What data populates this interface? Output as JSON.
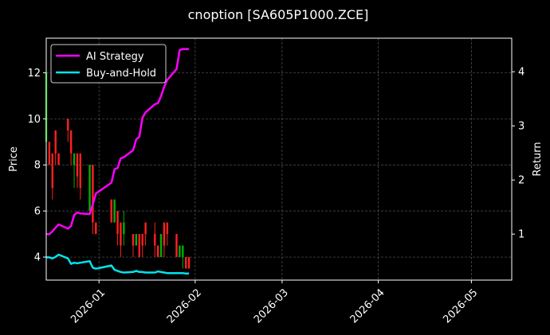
{
  "chart_data": {
    "type": "candlestick+line",
    "title": "cnoption [SA605P1000.ZCE]",
    "xlabel": "",
    "ylabel": "Price",
    "y2label": "Return",
    "xlim": [
      "2025-12-15",
      "2026-05-14"
    ],
    "ylim": [
      3.0,
      13.5
    ],
    "y2lim": [
      0.15,
      4.62
    ],
    "x_ticks": [
      "2026-01",
      "2026-02",
      "2026-03",
      "2026-04",
      "2026-05"
    ],
    "y_ticks": [
      "4",
      "6",
      "8",
      "10",
      "12"
    ],
    "y2_ticks": [
      "1",
      "2",
      "3",
      "4"
    ],
    "grid": true,
    "legend_position": "upper-left",
    "colors": {
      "background": "#000000",
      "up": "#00b000",
      "down": "#ff2020",
      "ai_strategy": "#ff00ff",
      "buy_and_hold": "#00e5ee",
      "grid": "#555555",
      "text": "#ffffff"
    },
    "series": [
      {
        "name": "AI Strategy",
        "axis": "right",
        "points": [
          [
            "2025-12-15",
            1.0
          ],
          [
            "2025-12-16",
            1.0
          ],
          [
            "2025-12-17",
            1.05
          ],
          [
            "2025-12-18",
            1.12
          ],
          [
            "2025-12-19",
            1.18
          ],
          [
            "2025-12-22",
            1.1
          ],
          [
            "2025-12-23",
            1.15
          ],
          [
            "2025-12-24",
            1.35
          ],
          [
            "2025-12-25",
            1.4
          ],
          [
            "2025-12-26",
            1.38
          ],
          [
            "2025-12-29",
            1.37
          ],
          [
            "2025-12-30",
            1.55
          ],
          [
            "2025-12-31",
            1.75
          ],
          [
            "2026-01-05",
            1.95
          ],
          [
            "2026-01-06",
            2.2
          ],
          [
            "2026-01-07",
            2.22
          ],
          [
            "2026-01-08",
            2.4
          ],
          [
            "2026-01-09",
            2.42
          ],
          [
            "2026-01-12",
            2.55
          ],
          [
            "2026-01-13",
            2.75
          ],
          [
            "2026-01-14",
            2.8
          ],
          [
            "2026-01-15",
            3.15
          ],
          [
            "2026-01-16",
            3.25
          ],
          [
            "2026-01-19",
            3.4
          ],
          [
            "2026-01-20",
            3.42
          ],
          [
            "2026-01-21",
            3.55
          ],
          [
            "2026-01-22",
            3.72
          ],
          [
            "2026-01-23",
            3.85
          ],
          [
            "2026-01-26",
            4.05
          ],
          [
            "2026-01-27",
            4.4
          ],
          [
            "2026-01-28",
            4.42
          ],
          [
            "2026-01-29",
            4.42
          ],
          [
            "2026-01-30",
            4.42
          ]
        ]
      },
      {
        "name": "Buy-and-Hold",
        "axis": "right",
        "points": [
          [
            "2025-12-15",
            0.57
          ],
          [
            "2025-12-16",
            0.57
          ],
          [
            "2025-12-17",
            0.55
          ],
          [
            "2025-12-18",
            0.58
          ],
          [
            "2025-12-19",
            0.62
          ],
          [
            "2025-12-22",
            0.55
          ],
          [
            "2025-12-23",
            0.45
          ],
          [
            "2025-12-24",
            0.47
          ],
          [
            "2025-12-25",
            0.46
          ],
          [
            "2025-12-26",
            0.47
          ],
          [
            "2025-12-29",
            0.5
          ],
          [
            "2025-12-30",
            0.38
          ],
          [
            "2025-12-31",
            0.36
          ],
          [
            "2026-01-05",
            0.42
          ],
          [
            "2026-01-06",
            0.34
          ],
          [
            "2026-01-07",
            0.32
          ],
          [
            "2026-01-08",
            0.3
          ],
          [
            "2026-01-09",
            0.29
          ],
          [
            "2026-01-12",
            0.3
          ],
          [
            "2026-01-13",
            0.32
          ],
          [
            "2026-01-14",
            0.3
          ],
          [
            "2026-01-15",
            0.3
          ],
          [
            "2026-01-16",
            0.29
          ],
          [
            "2026-01-19",
            0.29
          ],
          [
            "2026-01-20",
            0.31
          ],
          [
            "2026-01-21",
            0.3
          ],
          [
            "2026-01-22",
            0.29
          ],
          [
            "2026-01-23",
            0.28
          ],
          [
            "2026-01-26",
            0.28
          ],
          [
            "2026-01-27",
            0.28
          ],
          [
            "2026-01-28",
            0.28
          ],
          [
            "2026-01-29",
            0.27
          ],
          [
            "2026-01-30",
            0.27
          ]
        ]
      }
    ],
    "candles": [
      [
        "2025-12-15",
        9.0,
        13.0,
        8.0,
        12.0
      ],
      [
        "2025-12-16",
        9.0,
        9.0,
        8.0,
        8.0
      ],
      [
        "2025-12-17",
        8.5,
        8.5,
        6.5,
        7.0
      ],
      [
        "2025-12-18",
        9.5,
        9.5,
        8.0,
        8.5
      ],
      [
        "2025-12-19",
        8.5,
        8.5,
        8.0,
        8.0
      ],
      [
        "2025-12-22",
        10.0,
        10.0,
        9.0,
        9.5
      ],
      [
        "2025-12-23",
        9.5,
        9.5,
        8.0,
        8.5
      ],
      [
        "2025-12-24",
        8.0,
        8.5,
        7.0,
        8.5
      ],
      [
        "2025-12-25",
        8.5,
        8.5,
        7.0,
        7.5
      ],
      [
        "2025-12-26",
        8.5,
        8.5,
        6.5,
        7.0
      ],
      [
        "2025-12-29",
        6.0,
        8.0,
        6.0,
        8.0
      ],
      [
        "2025-12-30",
        8.0,
        8.0,
        5.0,
        5.5
      ],
      [
        "2025-12-31",
        5.5,
        5.5,
        5.0,
        5.0
      ],
      [
        "2026-01-05",
        6.5,
        6.5,
        5.5,
        5.5
      ],
      [
        "2026-01-06",
        5.5,
        6.5,
        5.5,
        6.5
      ],
      [
        "2026-01-07",
        6.0,
        6.0,
        4.5,
        5.0
      ],
      [
        "2026-01-08",
        5.5,
        5.5,
        4.0,
        4.5
      ],
      [
        "2026-01-09",
        5.0,
        6.0,
        4.5,
        5.5
      ],
      [
        "2026-01-12",
        5.0,
        5.0,
        4.0,
        4.5
      ],
      [
        "2026-01-13",
        4.5,
        5.0,
        4.5,
        5.0
      ],
      [
        "2026-01-14",
        5.0,
        5.0,
        4.0,
        4.0
      ],
      [
        "2026-01-15",
        5.0,
        5.0,
        4.0,
        4.5
      ],
      [
        "2026-01-16",
        5.5,
        5.5,
        4.5,
        5.0
      ],
      [
        "2026-01-19",
        5.0,
        5.5,
        4.0,
        4.5
      ],
      [
        "2026-01-20",
        4.5,
        4.5,
        4.0,
        4.0
      ],
      [
        "2026-01-21",
        4.0,
        5.0,
        4.0,
        5.0
      ],
      [
        "2026-01-22",
        5.5,
        5.5,
        4.0,
        4.5
      ],
      [
        "2026-01-23",
        5.5,
        5.5,
        4.5,
        5.0
      ],
      [
        "2026-01-26",
        5.0,
        5.0,
        4.0,
        4.0
      ],
      [
        "2026-01-27",
        4.0,
        4.5,
        4.0,
        4.5
      ],
      [
        "2026-01-28",
        4.0,
        4.5,
        3.5,
        4.5
      ],
      [
        "2026-01-29",
        4.0,
        4.0,
        3.5,
        3.5
      ],
      [
        "2026-01-30",
        4.0,
        4.0,
        3.5,
        3.5
      ]
    ]
  }
}
